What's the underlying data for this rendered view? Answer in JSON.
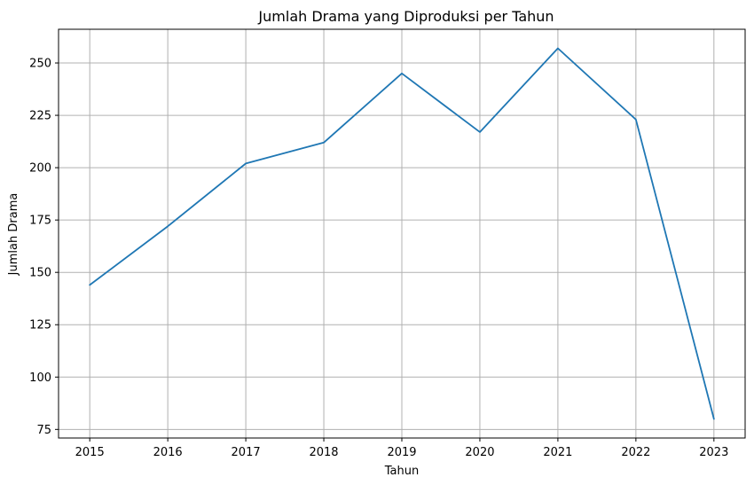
{
  "chart_data": {
    "type": "line",
    "title": "Jumlah Drama yang Diproduksi per Tahun",
    "xlabel": "Tahun",
    "ylabel": "Jumlah Drama",
    "x": [
      2015,
      2016,
      2017,
      2018,
      2019,
      2020,
      2021,
      2022,
      2023
    ],
    "x_tick_labels": [
      "2015",
      "2016",
      "2017",
      "2018",
      "2019",
      "2020",
      "2021",
      "2022",
      "2023"
    ],
    "series": [
      {
        "values": [
          144,
          172,
          202,
          212,
          245,
          217,
          257,
          223,
          80
        ],
        "color": "#1f77b4"
      }
    ],
    "y_ticks": [
      75,
      100,
      125,
      150,
      175,
      200,
      225,
      250
    ],
    "y_tick_labels": [
      "75",
      "100",
      "125",
      "150",
      "175",
      "200",
      "225",
      "250"
    ],
    "xlim": [
      2014.6,
      2023.4
    ],
    "ylim": [
      70.9,
      266.1
    ],
    "grid": true,
    "legend": "none"
  }
}
